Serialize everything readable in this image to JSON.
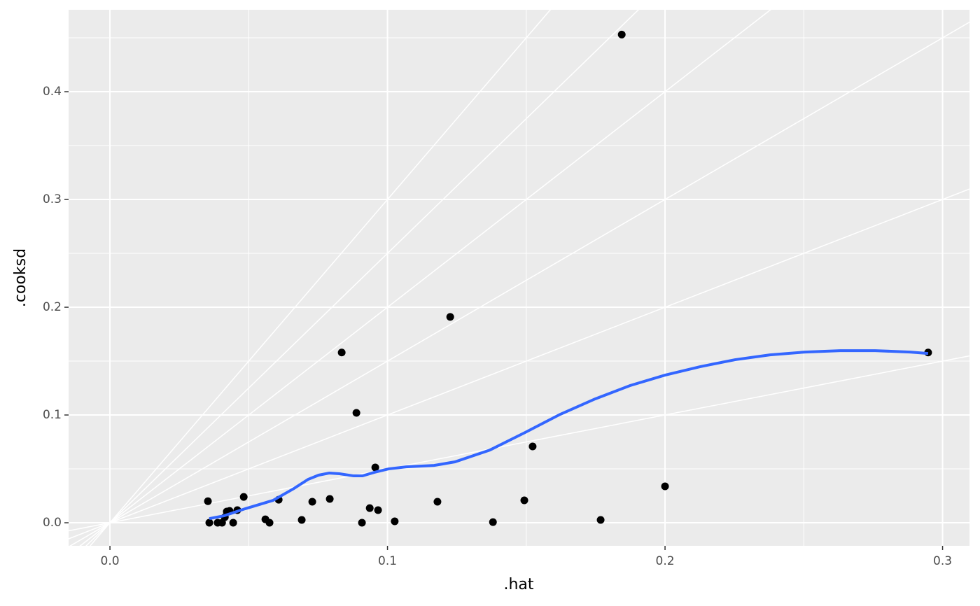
{
  "chart_data": {
    "type": "scatter",
    "x_label": ".hat",
    "y_label": ".cooksd",
    "xlim": [
      -0.0149,
      0.3097
    ],
    "ylim": [
      -0.0214,
      0.476
    ],
    "xticks": [
      {
        "value": 0,
        "label": "0.0"
      },
      0.1,
      0.2,
      0.3
    ],
    "yticks": [
      {
        "value": 0,
        "label": "0.0"
      },
      0.1,
      0.2,
      0.3,
      0.4
    ],
    "minor_xticks": [
      0.05,
      0.15,
      0.25
    ],
    "minor_yticks": [
      0.05,
      0.15,
      0.25,
      0.35,
      0.45
    ],
    "reference_slopes": [
      0.5,
      1,
      1.5,
      2,
      2.5,
      3
    ],
    "grid": true,
    "series": [
      {
        "type": "scatter",
        "color": "#000000",
        "x": [
          0.0353,
          0.0358,
          0.0388,
          0.0404,
          0.0414,
          0.0421,
          0.0431,
          0.0444,
          0.0459,
          0.0482,
          0.056,
          0.0575,
          0.0608,
          0.0691,
          0.0729,
          0.0792,
          0.0835,
          0.0888,
          0.0908,
          0.0936,
          0.0956,
          0.0966,
          0.1026,
          0.118,
          0.1226,
          0.138,
          0.1493,
          0.1523,
          0.1768,
          0.1844,
          0.2,
          0.2948
        ],
        "y": [
          0.02,
          0.0,
          0.0,
          0.0,
          0.0052,
          0.0104,
          0.011,
          0.0,
          0.0117,
          0.024,
          0.0032,
          0.0,
          0.0214,
          0.0026,
          0.0195,
          0.0221,
          0.158,
          0.102,
          0.0,
          0.0136,
          0.0513,
          0.0117,
          0.0013,
          0.0195,
          0.191,
          0.0006,
          0.0208,
          0.0708,
          0.0026,
          0.453,
          0.0338,
          0.158
        ]
      },
      {
        "type": "line",
        "color": "#3366FF",
        "x": [
          0.0358,
          0.0411,
          0.0487,
          0.0588,
          0.0663,
          0.0714,
          0.0752,
          0.079,
          0.0827,
          0.0878,
          0.091,
          0.0953,
          0.1004,
          0.1067,
          0.1168,
          0.1243,
          0.1369,
          0.1496,
          0.1622,
          0.1748,
          0.1874,
          0.2,
          0.2126,
          0.2252,
          0.2378,
          0.2504,
          0.2631,
          0.2757,
          0.2883,
          0.2948
        ],
        "y": [
          0.0039,
          0.0065,
          0.013,
          0.0208,
          0.0318,
          0.0403,
          0.0442,
          0.0461,
          0.0455,
          0.0435,
          0.0435,
          0.0468,
          0.05,
          0.0519,
          0.0532,
          0.0565,
          0.0675,
          0.0838,
          0.1006,
          0.1149,
          0.1273,
          0.137,
          0.1448,
          0.1513,
          0.1558,
          0.1584,
          0.1597,
          0.1597,
          0.1584,
          0.1571
        ]
      }
    ]
  }
}
